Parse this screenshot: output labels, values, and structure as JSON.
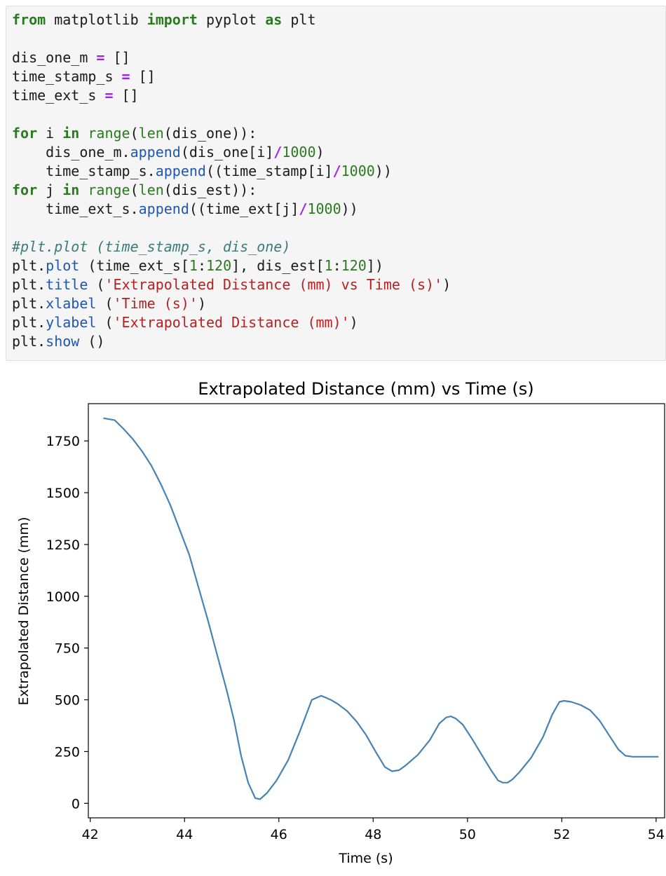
{
  "code_cell": {
    "lines": [
      [
        {
          "t": "from",
          "c": "kw"
        },
        {
          "t": " matplotlib "
        },
        {
          "t": "import",
          "c": "kw"
        },
        {
          "t": " pyplot "
        },
        {
          "t": "as",
          "c": "kw"
        },
        {
          "t": " plt"
        }
      ],
      [],
      [
        {
          "t": "dis_one_m "
        },
        {
          "t": "=",
          "c": "op"
        },
        {
          "t": " []"
        }
      ],
      [
        {
          "t": "time_stamp_s "
        },
        {
          "t": "=",
          "c": "op"
        },
        {
          "t": " []"
        }
      ],
      [
        {
          "t": "time_ext_s "
        },
        {
          "t": "=",
          "c": "op"
        },
        {
          "t": " []"
        }
      ],
      [],
      [
        {
          "t": "for",
          "c": "kw"
        },
        {
          "t": " i "
        },
        {
          "t": "in",
          "c": "kw"
        },
        {
          "t": " "
        },
        {
          "t": "range",
          "c": "fn"
        },
        {
          "t": "("
        },
        {
          "t": "len",
          "c": "fn"
        },
        {
          "t": "(dis_one)):"
        }
      ],
      [
        {
          "t": "    dis_one_m."
        },
        {
          "t": "append",
          "c": "attr"
        },
        {
          "t": "(dis_one[i]"
        },
        {
          "t": "/",
          "c": "op"
        },
        {
          "t": "1000",
          "c": "num"
        },
        {
          "t": ")"
        }
      ],
      [
        {
          "t": "    time_stamp_s."
        },
        {
          "t": "append",
          "c": "attr"
        },
        {
          "t": "((time_stamp[i]"
        },
        {
          "t": "/",
          "c": "op"
        },
        {
          "t": "1000",
          "c": "num"
        },
        {
          "t": "))"
        }
      ],
      [
        {
          "t": "for",
          "c": "kw"
        },
        {
          "t": " j "
        },
        {
          "t": "in",
          "c": "kw"
        },
        {
          "t": " "
        },
        {
          "t": "range",
          "c": "fn"
        },
        {
          "t": "("
        },
        {
          "t": "len",
          "c": "fn"
        },
        {
          "t": "(dis_est)):"
        }
      ],
      [
        {
          "t": "    time_ext_s."
        },
        {
          "t": "append",
          "c": "attr"
        },
        {
          "t": "((time_ext[j]"
        },
        {
          "t": "/",
          "c": "op"
        },
        {
          "t": "1000",
          "c": "num"
        },
        {
          "t": "))"
        }
      ],
      [],
      [
        {
          "t": "#plt.plot (time_stamp_s, dis_one)",
          "c": "cmt"
        }
      ],
      [
        {
          "t": "plt."
        },
        {
          "t": "plot",
          "c": "attr"
        },
        {
          "t": " (time_ext_s["
        },
        {
          "t": "1",
          "c": "num"
        },
        {
          "t": ":"
        },
        {
          "t": "120",
          "c": "num"
        },
        {
          "t": "], dis_est["
        },
        {
          "t": "1",
          "c": "num"
        },
        {
          "t": ":"
        },
        {
          "t": "120",
          "c": "num"
        },
        {
          "t": "])"
        }
      ],
      [
        {
          "t": "plt."
        },
        {
          "t": "title",
          "c": "attr"
        },
        {
          "t": " ("
        },
        {
          "t": "'Extrapolated Distance (mm) vs Time (s)'",
          "c": "str"
        },
        {
          "t": ")"
        }
      ],
      [
        {
          "t": "plt."
        },
        {
          "t": "xlabel",
          "c": "attr"
        },
        {
          "t": " ("
        },
        {
          "t": "'Time (s)'",
          "c": "str"
        },
        {
          "t": ")"
        }
      ],
      [
        {
          "t": "plt."
        },
        {
          "t": "ylabel",
          "c": "attr"
        },
        {
          "t": " ("
        },
        {
          "t": "'Extrapolated Distance (mm)'",
          "c": "str"
        },
        {
          "t": ")"
        }
      ],
      [
        {
          "t": "plt."
        },
        {
          "t": "show",
          "c": "attr"
        },
        {
          "t": " ()"
        }
      ]
    ]
  },
  "chart_data": {
    "type": "line",
    "title": "Extrapolated Distance (mm) vs Time (s)",
    "xlabel": "Time (s)",
    "ylabel": "Extrapolated Distance (mm)",
    "xlim": [
      41.96,
      54.18
    ],
    "ylim": [
      -70,
      1930
    ],
    "xticks": [
      42,
      44,
      46,
      48,
      50,
      52,
      54
    ],
    "yticks": [
      0,
      250,
      500,
      750,
      1000,
      1250,
      1500,
      1750
    ],
    "grid": false,
    "line_color": "#4682b4",
    "series": [
      {
        "x": [
          42.28,
          42.52,
          42.7,
          42.9,
          43.1,
          43.3,
          43.5,
          43.7,
          43.9,
          44.1,
          44.3,
          44.5,
          44.7,
          44.9,
          45.05,
          45.2,
          45.35,
          45.5,
          45.6,
          45.75,
          45.95,
          46.2,
          46.45,
          46.7,
          46.9,
          47.0,
          47.1,
          47.25,
          47.45,
          47.65,
          47.85,
          48.05,
          48.25,
          48.4,
          48.55,
          48.7,
          48.95,
          49.2,
          49.4,
          49.55,
          49.65,
          49.75,
          49.9,
          50.1,
          50.3,
          50.5,
          50.65,
          50.75,
          50.85,
          50.95,
          51.1,
          51.35,
          51.6,
          51.8,
          51.95,
          52.05,
          52.2,
          52.4,
          52.6,
          52.8,
          53.0,
          53.2,
          53.35,
          53.5,
          53.7,
          54.05
        ],
        "y": [
          1860,
          1850,
          1810,
          1760,
          1700,
          1630,
          1540,
          1440,
          1320,
          1200,
          1040,
          880,
          710,
          540,
          400,
          230,
          100,
          25,
          20,
          50,
          110,
          210,
          350,
          500,
          520,
          510,
          500,
          480,
          445,
          395,
          330,
          250,
          175,
          155,
          160,
          185,
          235,
          305,
          385,
          415,
          420,
          410,
          380,
          310,
          235,
          160,
          110,
          100,
          100,
          115,
          150,
          220,
          320,
          430,
          490,
          495,
          490,
          475,
          450,
          400,
          330,
          260,
          230,
          225,
          225,
          225
        ]
      }
    ]
  }
}
